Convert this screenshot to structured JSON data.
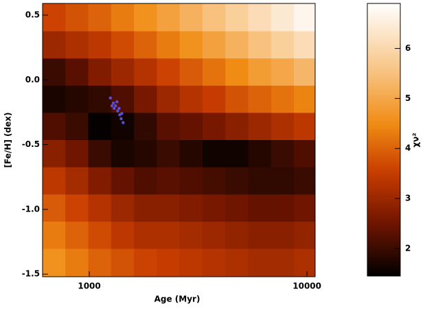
{
  "chart_data": {
    "type": "heatmap",
    "xlabel": "Age (Myr)",
    "ylabel": "[Fe/H] (dex)",
    "xscale": "log",
    "xlim": [
      610,
      10900
    ],
    "xticks": [
      1000,
      10000
    ],
    "ylim": [
      -1.52,
      0.59
    ],
    "yticks": [
      0.5,
      {
        "value": 0,
        "label": "0.0"
      },
      -0.5,
      {
        "value": -1,
        "label": "-1.0"
      },
      -1.5
    ],
    "x": [
      692,
      871,
      1122,
      1413,
      1820,
      2291,
      2951,
      3715,
      4786,
      6026,
      7762,
      9772
    ],
    "y": [
      0.48,
      0.27,
      0.06,
      -0.15,
      -0.36,
      -0.57,
      -0.78,
      -0.99,
      -1.2,
      -1.41
    ],
    "values": [
      [
        3.6,
        3.8,
        4.0,
        4.3,
        4.6,
        4.9,
        5.2,
        5.5,
        5.8,
        6.1,
        6.4,
        6.7
      ],
      [
        3.0,
        3.2,
        3.4,
        3.7,
        4.0,
        4.3,
        4.6,
        4.9,
        5.2,
        5.5,
        5.8,
        6.1
      ],
      [
        2.0,
        2.3,
        2.7,
        3.0,
        3.3,
        3.6,
        3.9,
        4.2,
        4.5,
        4.8,
        5.0,
        5.3
      ],
      [
        1.7,
        1.8,
        1.9,
        2.2,
        2.6,
        3.0,
        3.3,
        3.5,
        3.8,
        4.0,
        4.2,
        4.4
      ],
      [
        2.2,
        2.0,
        1.5,
        1.6,
        1.9,
        2.3,
        2.4,
        2.6,
        2.8,
        3.0,
        3.2,
        3.4
      ],
      [
        2.8,
        2.5,
        2.0,
        1.7,
        1.8,
        2.0,
        1.8,
        1.6,
        1.6,
        1.8,
        2.0,
        2.2
      ],
      [
        3.4,
        3.1,
        2.7,
        2.4,
        2.2,
        2.3,
        2.2,
        2.1,
        2.0,
        1.9,
        1.9,
        2.0
      ],
      [
        3.9,
        3.6,
        3.3,
        3.0,
        2.8,
        2.8,
        2.7,
        2.6,
        2.5,
        2.4,
        2.4,
        2.5
      ],
      [
        4.3,
        4.0,
        3.7,
        3.4,
        3.2,
        3.2,
        3.1,
        3.0,
        2.9,
        2.8,
        2.8,
        2.9
      ],
      [
        4.6,
        4.3,
        4.0,
        3.8,
        3.6,
        3.5,
        3.4,
        3.3,
        3.2,
        3.1,
        3.1,
        3.2
      ]
    ],
    "points": {
      "color": "#5a4fd6",
      "x": [
        1250,
        1290,
        1320,
        1350,
        1380,
        1400,
        1430,
        1300,
        1340,
        1370,
        1270,
        1410
      ],
      "y": [
        -0.14,
        -0.18,
        -0.2,
        -0.24,
        -0.27,
        -0.3,
        -0.33,
        -0.22,
        -0.17,
        -0.22,
        -0.2,
        -0.26
      ]
    },
    "colorbar_label": "χν²",
    "clim": [
      1.45,
      6.9
    ],
    "cticks": [
      2,
      3,
      4,
      5,
      6
    ]
  }
}
